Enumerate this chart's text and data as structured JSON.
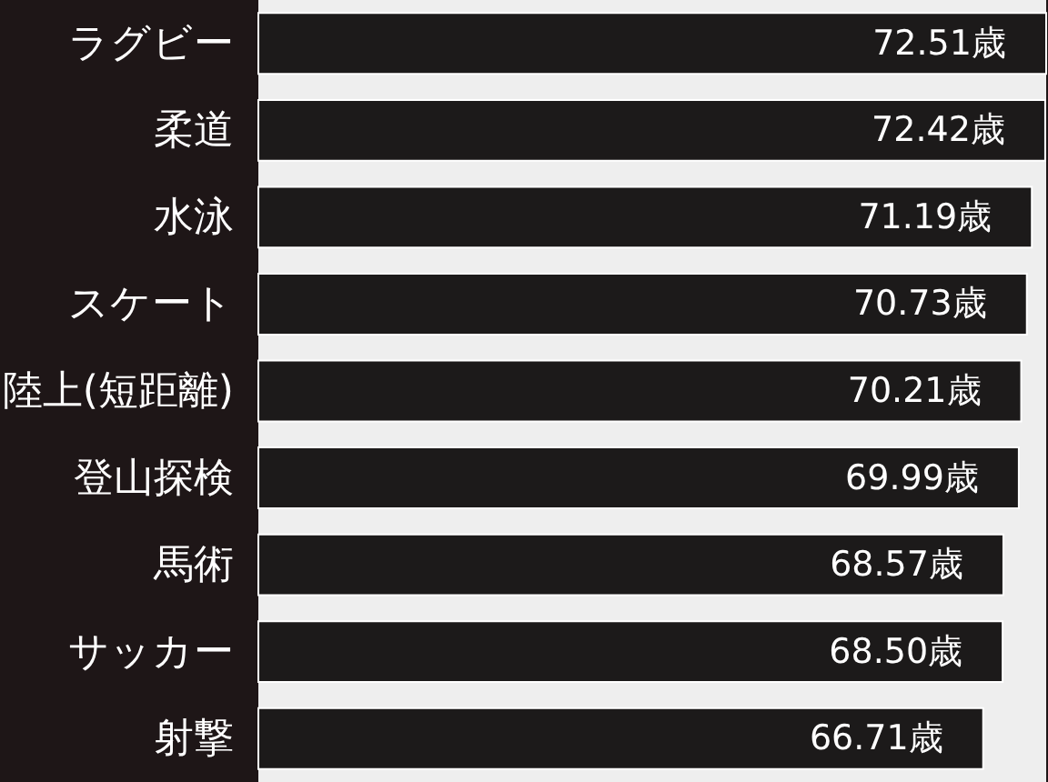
{
  "chart_data": {
    "type": "bar",
    "orientation": "horizontal",
    "categories": [
      "ラグビー",
      "柔道",
      "水泳",
      "スケート",
      "陸上(短距離)",
      "登山探検",
      "馬術",
      "サッカー",
      "射撃"
    ],
    "values": [
      72.51,
      72.42,
      71.19,
      70.73,
      70.21,
      69.99,
      68.57,
      68.5,
      66.71
    ],
    "value_labels": [
      "72.51歳",
      "72.42歳",
      "71.19歳",
      "70.73歳",
      "70.21歳",
      "69.99歳",
      "68.57歳",
      "68.50歳",
      "66.71歳"
    ],
    "color": "#1c1a1a"
  }
}
